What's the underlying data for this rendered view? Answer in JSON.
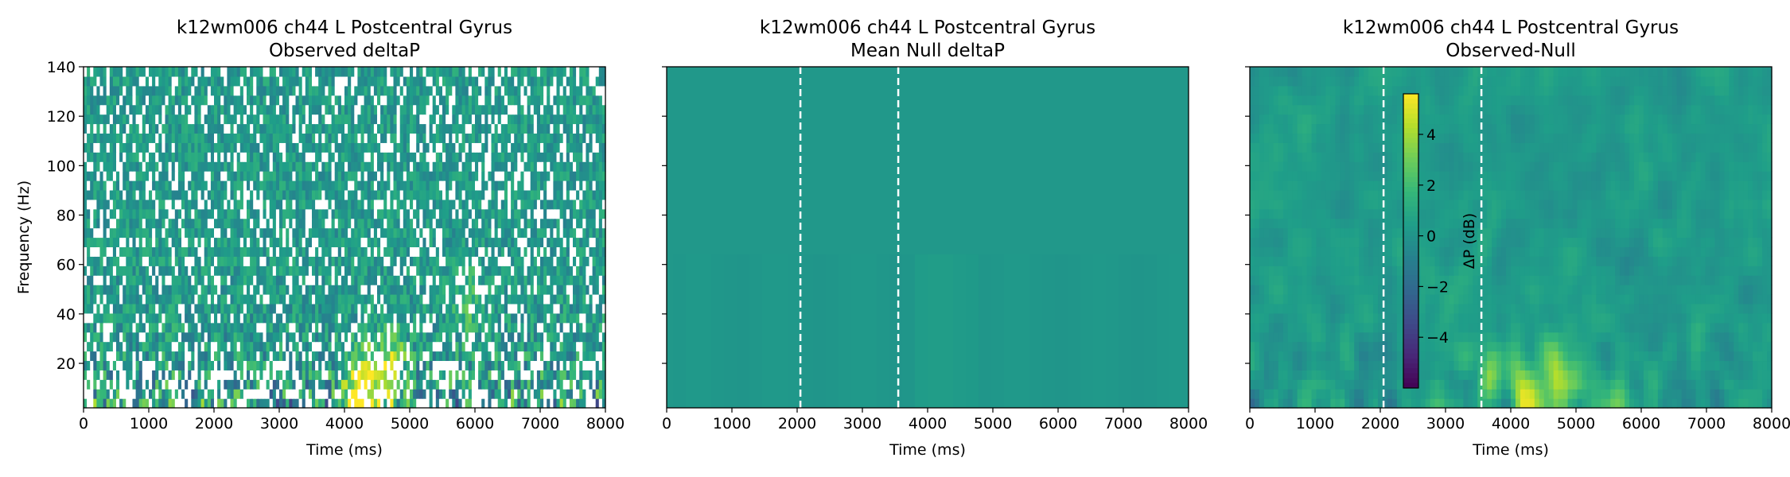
{
  "chart_data": [
    {
      "type": "heatmap",
      "title": "k12wm006 ch44 L Postcentral Gyrus",
      "subtitle": "Observed deltaP",
      "xlabel": "Time (ms)",
      "ylabel": "Frequency (Hz)",
      "xlim": [
        0,
        8000
      ],
      "ylim": [
        2,
        140
      ],
      "xticks": [
        0,
        1000,
        2000,
        3000,
        4000,
        5000,
        6000,
        7000,
        8000
      ],
      "yticks": [
        20,
        40,
        60,
        80,
        100,
        120,
        140
      ],
      "show_y_ticklabels": true,
      "event_lines_ms": [],
      "colormap": "viridis",
      "texture": "masked-noisy",
      "hotspots": [
        {
          "t": 4200,
          "f": 8,
          "v": 4.8
        },
        {
          "t": 4700,
          "f": 20,
          "v": 4.0
        },
        {
          "t": 4400,
          "f": 12,
          "v": 3.6
        },
        {
          "t": 5900,
          "f": 45,
          "v": 2.0
        }
      ]
    },
    {
      "type": "heatmap",
      "title": "k12wm006 ch44 L Postcentral Gyrus",
      "subtitle": "Mean Null deltaP",
      "xlabel": "Time (ms)",
      "ylabel": "",
      "xlim": [
        0,
        8000
      ],
      "ylim": [
        2,
        140
      ],
      "xticks": [
        0,
        1000,
        2000,
        3000,
        4000,
        5000,
        6000,
        7000,
        8000
      ],
      "yticks": [
        20,
        40,
        60,
        80,
        100,
        120,
        140
      ],
      "show_y_ticklabels": false,
      "event_lines_ms": [
        2050,
        3550
      ],
      "colormap": "viridis",
      "texture": "flat",
      "hotspots": []
    },
    {
      "type": "heatmap",
      "title": "k12wm006 ch44 L Postcentral Gyrus",
      "subtitle": "Observed-Null",
      "xlabel": "Time (ms)",
      "ylabel": "",
      "xlim": [
        0,
        8000
      ],
      "ylim": [
        2,
        140
      ],
      "xticks": [
        0,
        1000,
        2000,
        3000,
        4000,
        5000,
        6000,
        7000,
        8000
      ],
      "yticks": [
        20,
        40,
        60,
        80,
        100,
        120,
        140
      ],
      "show_y_ticklabels": false,
      "event_lines_ms": [
        2050,
        3550
      ],
      "colormap": "viridis",
      "texture": "smooth",
      "hotspots": [
        {
          "t": 4200,
          "f": 6,
          "v": 5.0
        },
        {
          "t": 4650,
          "f": 18,
          "v": 3.8
        },
        {
          "t": 3700,
          "f": 12,
          "v": 2.6
        },
        {
          "t": 5100,
          "f": 10,
          "v": 2.2
        }
      ],
      "colorbar": {
        "label": "ΔP (dB)",
        "range": [
          -6,
          5.6
        ],
        "ticks": [
          -4,
          -2,
          0,
          2,
          4
        ],
        "tick_labels": [
          "−4",
          "−2",
          "0",
          "2",
          "4"
        ]
      }
    }
  ]
}
